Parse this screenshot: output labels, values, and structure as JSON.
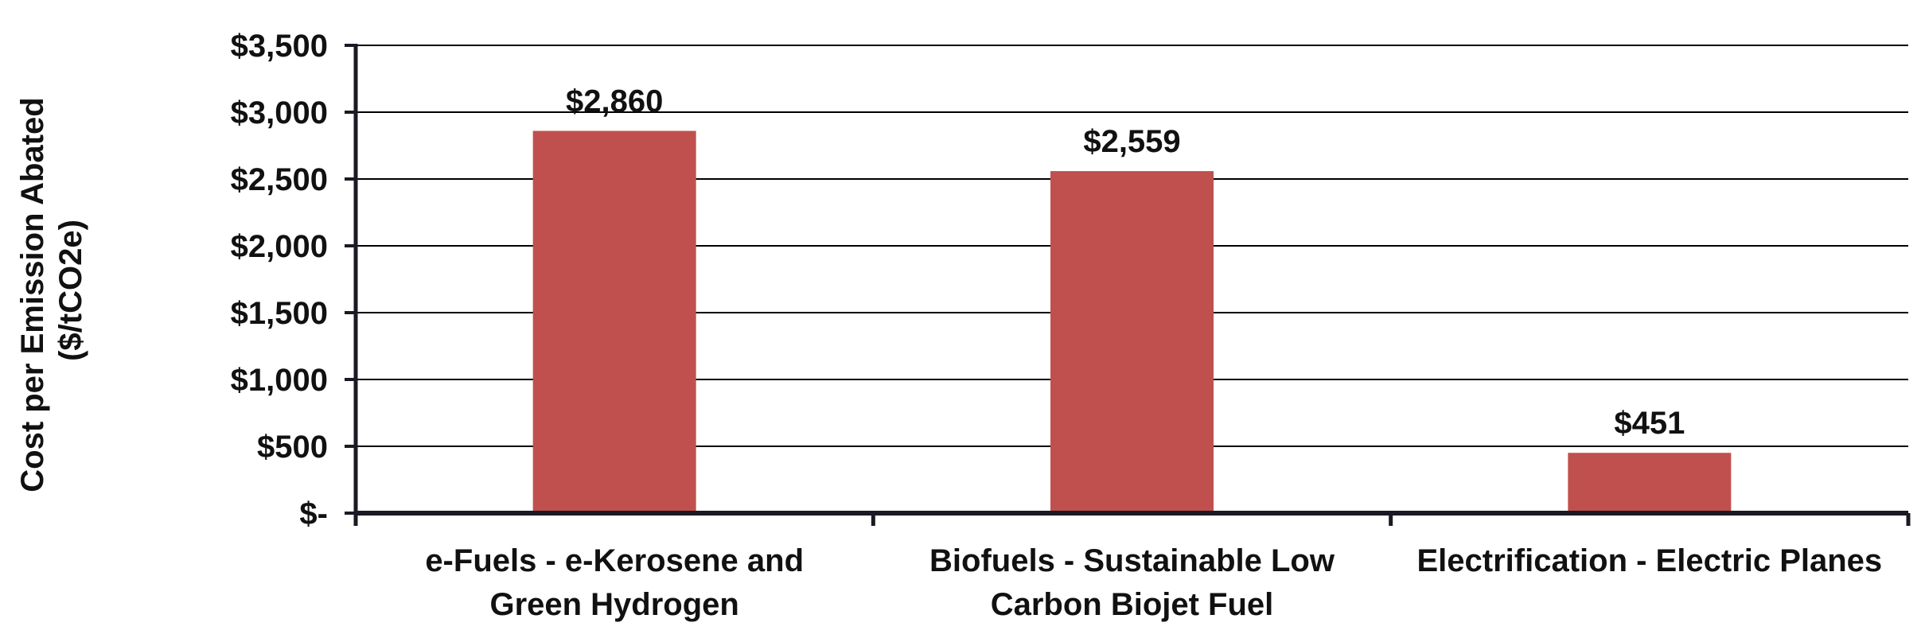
{
  "chart_data": {
    "type": "bar",
    "categories": [
      [
        "e-Fuels - e-Kerosene and",
        "Green Hydrogen"
      ],
      [
        "Biofuels - Sustainable Low",
        "Carbon Biojet Fuel"
      ],
      [
        "Electrification - Electric Planes"
      ]
    ],
    "values": [
      2860,
      2559,
      451
    ],
    "data_labels": [
      "$2,860",
      "$2,559",
      "$451"
    ],
    "ylabel": [
      "Cost per Emission Abated",
      "($/tCO2e)"
    ],
    "ylim": [
      0,
      3500
    ],
    "yticks": [
      0,
      500,
      1000,
      1500,
      2000,
      2500,
      3000,
      3500
    ],
    "ytick_labels": [
      "$-",
      "$500",
      "$1,000",
      "$1,500",
      "$2,000",
      "$2,500",
      "$3,000",
      "$3,500"
    ],
    "grid": true,
    "legend": "none",
    "colors": {
      "bar": "#c0504d",
      "grid": "#000000",
      "axis": "#1a1a24",
      "text": "#111111"
    }
  }
}
